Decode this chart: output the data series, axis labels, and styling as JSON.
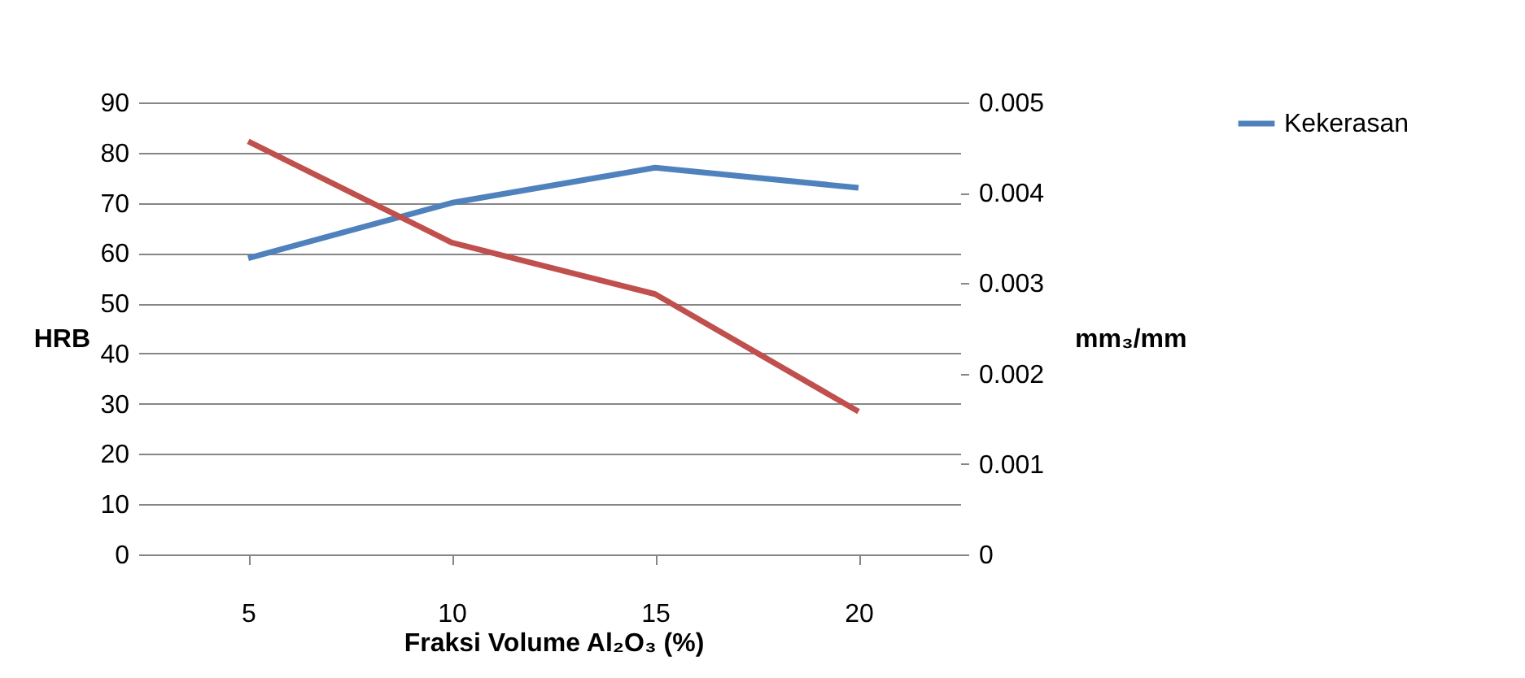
{
  "chart_data": {
    "type": "line",
    "xlabel": "Fraksi Volume Al₂O₃ (%)",
    "ylabel": "HRB",
    "y2label": "mm₃/mm",
    "categories": [
      "5",
      "10",
      "15",
      "20"
    ],
    "series": [
      {
        "name": "Kekerasan",
        "color": "#4f81bd",
        "values": [
          59,
          70,
          77,
          73
        ]
      },
      {
        "color": "#c0504d",
        "axis": "y2",
        "values": [
          0.00457,
          0.00345,
          0.00288,
          0.00158
        ]
      }
    ],
    "ylim": [
      0,
      90
    ],
    "yticks": [
      0,
      10,
      20,
      30,
      40,
      50,
      60,
      70,
      80,
      90
    ],
    "y2lim": [
      0,
      0.005
    ],
    "y2ticks": [
      0,
      0.001,
      0.002,
      0.003,
      0.004,
      0.005
    ],
    "grid": "y",
    "legend": "right",
    "marker": "none",
    "line_style": "solid"
  }
}
